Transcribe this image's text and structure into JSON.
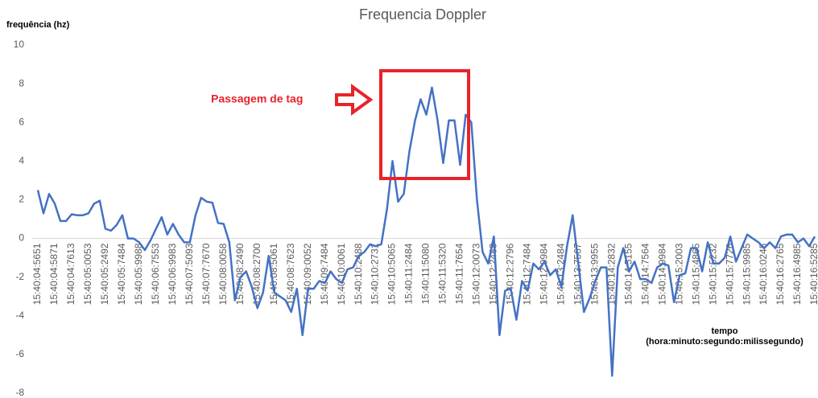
{
  "chart_data": {
    "type": "line",
    "title": "Frequencia Doppler",
    "y_label": "frequência (hz)",
    "x_label": [
      "tempo",
      "(hora:minuto:segundo:milissegundo)"
    ],
    "annotation": "Passagem de tag",
    "color": "#4472c4",
    "categories": [
      "15:40:04:5651",
      null,
      null,
      "15:40:04:5871",
      null,
      null,
      "15:40:04:7613",
      null,
      null,
      "15:40:05:0053",
      null,
      null,
      "15:40:05:2492",
      null,
      null,
      "15:40:05:7484",
      null,
      null,
      "15:40:05:9988",
      null,
      null,
      "15:40:06:7553",
      null,
      null,
      "15:40:06:9983",
      null,
      null,
      "15:40:07:5093",
      null,
      null,
      "15:40:07:7670",
      null,
      null,
      "15:40:08:0058",
      null,
      null,
      "15:40:08:2490",
      null,
      null,
      "15:40:08:2700",
      null,
      null,
      "15:40:08:5061",
      null,
      null,
      "15:40:08:7623",
      null,
      null,
      "15:40:09:0052",
      null,
      null,
      "15:40:09:7484",
      null,
      null,
      "15:40:10:0061",
      null,
      null,
      "15:40:10:2488",
      null,
      null,
      "15:40:10:2731",
      null,
      null,
      "15:40:10:5065",
      null,
      null,
      "15:40:11:2484",
      null,
      null,
      "15:40:11:5080",
      null,
      null,
      "15:40:11:5320",
      null,
      null,
      "15:40:11:7654",
      null,
      null,
      "15:40:12:0073",
      null,
      null,
      "15:40:12:2488",
      null,
      null,
      "15:40:12:2796",
      null,
      null,
      "15:40:12:7484",
      null,
      null,
      "15:40:12:9984",
      null,
      null,
      "15:40:13:2484",
      null,
      null,
      "15:40:13:7567",
      null,
      null,
      "15:40:13:9955",
      null,
      null,
      "15:40:14:2832",
      null,
      null,
      "15:40:14:5155",
      null,
      null,
      "15:40:14:7564",
      null,
      null,
      "15:40:14:9984",
      null,
      null,
      "15:40:15:2003",
      null,
      null,
      "15:40:15:4865",
      null,
      null,
      "15:40:15:5232",
      null,
      null,
      "15:40:15:7726",
      null,
      null,
      "15:40:15:9985",
      null,
      null,
      "15:40:16:0245",
      null,
      null,
      "15:40:16:2765",
      null,
      null,
      "15:40:16:4985",
      null,
      null,
      "15:40:16:5285"
    ],
    "values": [
      2.5,
      1.3,
      2.3,
      1.8,
      0.9,
      0.9,
      1.25,
      1.2,
      1.2,
      1.3,
      1.8,
      1.95,
      0.5,
      0.4,
      0.7,
      1.2,
      0.0,
      0.0,
      -0.2,
      -0.6,
      -0.1,
      0.5,
      1.1,
      0.2,
      0.75,
      0.2,
      -0.2,
      -0.2,
      1.2,
      2.1,
      1.9,
      1.85,
      0.8,
      0.75,
      -0.2,
      -3.2,
      -2.0,
      -1.7,
      -2.5,
      -3.6,
      -2.8,
      -0.9,
      -2.8,
      -3.0,
      -3.2,
      -3.8,
      -2.6,
      -5.0,
      -2.6,
      -2.6,
      -2.2,
      -2.3,
      -1.7,
      -2.1,
      -2.3,
      -1.6,
      -1.5,
      -0.9,
      -0.7,
      -0.3,
      -0.4,
      -0.3,
      1.5,
      4.0,
      1.9,
      2.3,
      4.5,
      6.1,
      7.2,
      6.4,
      7.8,
      6.1,
      3.9,
      6.1,
      6.1,
      3.8,
      6.4,
      6.0,
      2.0,
      -0.7,
      -1.3,
      0.1,
      -5.0,
      -2.7,
      -2.6,
      -4.2,
      -2.2,
      -2.7,
      -1.3,
      -1.6,
      -1.2,
      -1.9,
      -1.6,
      -2.5,
      -0.4,
      1.2,
      -1.3,
      -3.8,
      -3.1,
      -2.2,
      -1.5,
      -1.5,
      -7.1,
      -1.5,
      -0.5,
      -1.7,
      -1.2,
      -2.1,
      -2.1,
      -2.3,
      -1.5,
      -1.3,
      -1.4,
      -3.3,
      -1.9,
      -1.8,
      -0.5,
      -0.5,
      -1.7,
      -0.2,
      -1.3,
      -1.3,
      -1.0,
      0.1,
      -1.2,
      -0.5,
      0.2,
      0.0,
      -0.2,
      -0.5,
      -0.2,
      -0.5,
      0.1,
      0.2,
      0.2,
      -0.2,
      0.0,
      -0.4,
      0.1
    ],
    "ylim": [
      -8,
      10
    ],
    "yticks": [
      -8,
      -6,
      -4,
      -2,
      0,
      2,
      4,
      6,
      8,
      10
    ],
    "grid": false
  }
}
